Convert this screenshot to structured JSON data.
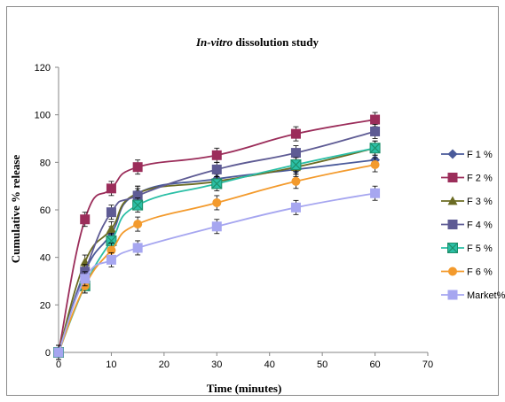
{
  "chart_data": {
    "type": "line",
    "title_italic": "In-vitro",
    "title_rest": " dissolution study",
    "xlabel": "Time (minutes)",
    "ylabel": "Cumulative % release",
    "xlim": [
      0,
      70
    ],
    "ylim": [
      0,
      120
    ],
    "xticks": [
      0,
      10,
      20,
      30,
      40,
      50,
      60,
      70
    ],
    "yticks": [
      0,
      20,
      40,
      60,
      80,
      100,
      120
    ],
    "grid": false,
    "legend_position": "right",
    "x": [
      0,
      5,
      10,
      15,
      30,
      45,
      60
    ],
    "series": [
      {
        "name": "F 1 %",
        "color": "#4a5a9a",
        "marker": "diamond",
        "values": [
          0,
          34,
          50,
          67,
          73,
          77,
          81
        ]
      },
      {
        "name": "F 2 %",
        "color": "#9b2d5a",
        "marker": "square",
        "values": [
          0,
          56,
          69,
          78,
          83,
          92,
          98
        ]
      },
      {
        "name": "F 3 %",
        "color": "#6b6b23",
        "marker": "triangle",
        "values": [
          0,
          38,
          52,
          67,
          72,
          78,
          86
        ]
      },
      {
        "name": "F 4 %",
        "color": "#5e5b94",
        "marker": "square",
        "values": [
          0,
          34,
          59,
          66,
          77,
          84,
          93
        ]
      },
      {
        "name": "F 5 %",
        "color": "#2bbfa6",
        "marker": "xsquare",
        "values": [
          0,
          28,
          47,
          62,
          71,
          79,
          86
        ]
      },
      {
        "name": "F 6 %",
        "color": "#f39a2c",
        "marker": "circle",
        "values": [
          0,
          28,
          43,
          54,
          63,
          72,
          79
        ]
      },
      {
        "name": "Market%",
        "color": "#a6a6f0",
        "marker": "square",
        "values": [
          0,
          31,
          39,
          44,
          53,
          61,
          67
        ]
      }
    ]
  }
}
